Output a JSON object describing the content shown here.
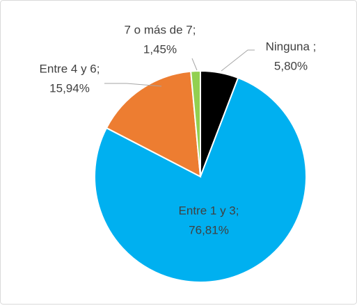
{
  "chart_data": {
    "type": "pie",
    "categories": [
      "Ninguna ;",
      "Entre 1 y 3;",
      "Entre 4 y 6;",
      "7 o más de 7;"
    ],
    "values": [
      5.8,
      76.81,
      15.94,
      1.45
    ],
    "value_labels": [
      "5,80%",
      "76,81%",
      "15,94%",
      "1,45%"
    ],
    "colors": [
      "#000000",
      "#00B0F0",
      "#ED7D31",
      "#92D050"
    ]
  }
}
